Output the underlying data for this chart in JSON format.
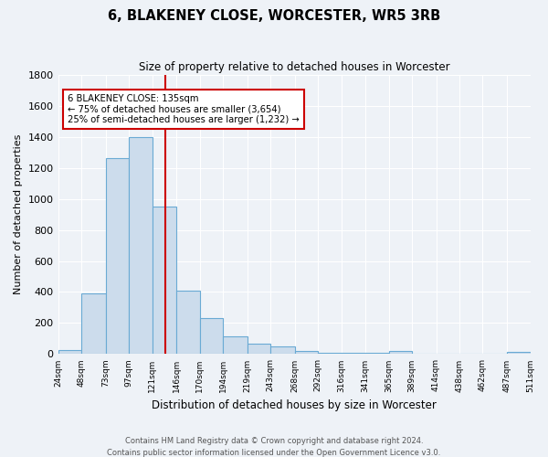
{
  "title": "6, BLAKENEY CLOSE, WORCESTER, WR5 3RB",
  "subtitle": "Size of property relative to detached houses in Worcester",
  "xlabel": "Distribution of detached houses by size in Worcester",
  "ylabel": "Number of detached properties",
  "footer_line1": "Contains HM Land Registry data © Crown copyright and database right 2024.",
  "footer_line2": "Contains public sector information licensed under the Open Government Licence v3.0.",
  "property_label": "6 BLAKENEY CLOSE: 135sqm",
  "annotation_line1": "← 75% of detached houses are smaller (3,654)",
  "annotation_line2": "25% of semi-detached houses are larger (1,232) →",
  "property_size": 135,
  "bin_edges": [
    24,
    48,
    73,
    97,
    121,
    146,
    170,
    194,
    219,
    243,
    268,
    292,
    316,
    341,
    365,
    389,
    414,
    438,
    462,
    487,
    511
  ],
  "bin_counts": [
    25,
    390,
    1260,
    1400,
    950,
    410,
    230,
    115,
    65,
    50,
    20,
    10,
    10,
    10,
    20,
    5,
    5,
    2,
    2,
    15
  ],
  "bar_facecolor": "#ccdcec",
  "bar_edgecolor": "#6aaad4",
  "vline_color": "#cc0000",
  "vline_x": 135,
  "annotation_box_color": "#cc0000",
  "background_color": "#eef2f7",
  "grid_color": "#ffffff",
  "ylim": [
    0,
    1800
  ],
  "yticks": [
    0,
    200,
    400,
    600,
    800,
    1000,
    1200,
    1400,
    1600,
    1800
  ]
}
